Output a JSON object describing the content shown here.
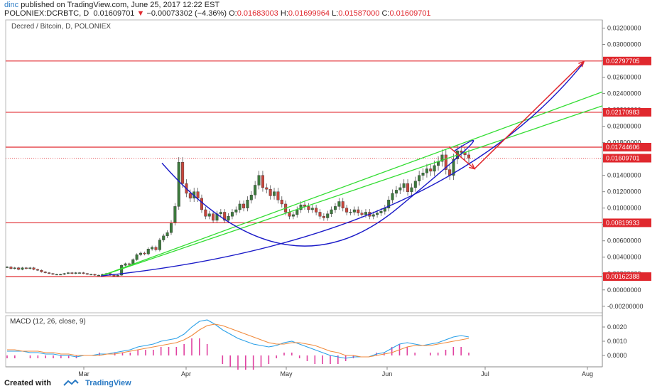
{
  "header": {
    "user": "dinc",
    "published_text": "published on TradingView.com, June 25, 2017 12:22 EST",
    "symbol": "POLONIEX:DCRBTC, D",
    "last": "0.01609701",
    "change": "−0.00073302 (−4.36%)",
    "open_label": "O:",
    "open": "0.01683003",
    "high_label": "H:",
    "high": "0.01699964",
    "low_label": "L:",
    "low": "0.01587000",
    "close_label": "C:",
    "close": "0.01609701"
  },
  "footer": {
    "created_with": "Created with",
    "brand": "TradingView"
  },
  "colors": {
    "up": "#3c7a3c",
    "down": "#c8453c",
    "level": "#e0282e",
    "trend": "#33dd33",
    "curve": "#1a1ac8",
    "arrow": "#e0282e",
    "macd": "#2aa0e8",
    "signal": "#f08a3c",
    "hist": "#e040a0"
  },
  "chart_data": [
    {
      "type": "candlestick",
      "title": "Decred / Bitcoin, D, POLONIEX",
      "x_ticks": [
        "Mar",
        "Apr",
        "May",
        "Jun",
        "Jul",
        "Aug"
      ],
      "y_ticks": [
        "0.03200000",
        "0.03000000",
        "0.02800000",
        "0.02600000",
        "0.02400000",
        "0.02200000",
        "0.02000000",
        "0.01800000",
        "0.01600000",
        "0.01400000",
        "0.01200000",
        "0.01000000",
        "0.00800000",
        "0.00600000",
        "0.00400000",
        "0.00200000",
        "0.00000000",
        "-0.00200000"
      ],
      "ylim": [
        -0.0028,
        0.033
      ],
      "price_labels": [
        "0.02797705",
        "0.02170983",
        "0.01744606",
        "0.01609701",
        "0.00819933",
        "0.00162388"
      ],
      "horizontal_levels": [
        0.02797705,
        0.02170983,
        0.01744606,
        0.00819933,
        0.00162388
      ],
      "last_price": 0.01609701,
      "closes": [
        0.0028,
        0.0026,
        0.0027,
        0.0025,
        0.0027,
        0.0026,
        0.0027,
        0.0025,
        0.0024,
        0.0022,
        0.0021,
        0.002,
        0.0019,
        0.0019,
        0.0019,
        0.002,
        0.0021,
        0.002,
        0.0021,
        0.0021,
        0.002,
        0.0019,
        0.0019,
        0.0018,
        0.0018,
        0.0019,
        0.002,
        0.0018,
        0.0017,
        0.0018,
        0.003,
        0.0032,
        0.0031,
        0.0037,
        0.0043,
        0.0045,
        0.0044,
        0.005,
        0.0052,
        0.0049,
        0.0061,
        0.0066,
        0.007,
        0.0082,
        0.0102,
        0.0156,
        0.013,
        0.0118,
        0.0112,
        0.012,
        0.0112,
        0.0098,
        0.009,
        0.0093,
        0.0085,
        0.0093,
        0.0095,
        0.0085,
        0.009,
        0.0095,
        0.0098,
        0.0105,
        0.01,
        0.011,
        0.0116,
        0.0128,
        0.014,
        0.0125,
        0.0123,
        0.0115,
        0.012,
        0.011,
        0.0105,
        0.0095,
        0.009,
        0.0092,
        0.0098,
        0.0104,
        0.0102,
        0.0098,
        0.01,
        0.0095,
        0.009,
        0.0088,
        0.0093,
        0.0098,
        0.0102,
        0.0108,
        0.01,
        0.0095,
        0.0095,
        0.0098,
        0.0094,
        0.0092,
        0.0095,
        0.009,
        0.0092,
        0.0094,
        0.0096,
        0.01,
        0.011,
        0.0118,
        0.0122,
        0.0125,
        0.013,
        0.012,
        0.0125,
        0.0133,
        0.014,
        0.0143,
        0.0148,
        0.0145,
        0.0152,
        0.0157,
        0.0165,
        0.0147,
        0.014,
        0.016,
        0.017,
        0.0168,
        0.0165,
        0.0161
      ],
      "annotations": [
        "channel trend lines",
        "curved support arcs",
        "projection arrows"
      ]
    },
    {
      "type": "line",
      "title": "MACD (12, 26, close, 9)",
      "series": [
        {
          "name": "MACD",
          "values": [
            0.0003,
            0.0003,
            0.0003,
            0.0002,
            0.0002,
            0.0001,
            0.0001,
            0.0,
            0.0,
            -0.0001,
            0.0,
            0.0,
            0.0001,
            0.0001,
            0.0002,
            0.0003,
            0.0004,
            0.0006,
            0.0007,
            0.0008,
            0.001,
            0.0011,
            0.0012,
            0.0015,
            0.002,
            0.0024,
            0.0025,
            0.0022,
            0.0018,
            0.0015,
            0.0012,
            0.001,
            0.0008,
            0.0007,
            0.0006,
            0.0007,
            0.0009,
            0.001,
            0.0008,
            0.0006,
            0.0004,
            0.0002,
            0.0,
            -0.0001,
            -0.0002,
            -0.0001,
            -0.0001,
            -0.0001,
            0.0001,
            0.0002,
            0.0005,
            0.0008,
            0.0009,
            0.0008,
            0.0007,
            0.0008,
            0.0009,
            0.0011,
            0.0013,
            0.0014,
            0.0013
          ]
        },
        {
          "name": "Signal",
          "values": [
            0.0004,
            0.0004,
            0.0003,
            0.0003,
            0.0003,
            0.0002,
            0.0002,
            0.0001,
            0.0001,
            0.0,
            0.0,
            0.0,
            0.0,
            0.0001,
            0.0001,
            0.0002,
            0.0003,
            0.0004,
            0.0005,
            0.0006,
            0.0007,
            0.0008,
            0.0009,
            0.0011,
            0.0014,
            0.0018,
            0.0021,
            0.0022,
            0.0021,
            0.0019,
            0.0017,
            0.0015,
            0.0013,
            0.0011,
            0.0009,
            0.0008,
            0.0008,
            0.0009,
            0.0009,
            0.0008,
            0.0007,
            0.0005,
            0.0003,
            0.0002,
            0.0,
            0.0,
            -0.0001,
            -0.0001,
            0.0,
            0.0001,
            0.0002,
            0.0004,
            0.0006,
            0.0007,
            0.0007,
            0.0007,
            0.0008,
            0.0009,
            0.001,
            0.0011,
            0.0012
          ]
        }
      ],
      "y_ticks": [
        "0.0020",
        "0.0010",
        "0.0000"
      ],
      "ylim": [
        -0.0008,
        0.0028
      ]
    }
  ]
}
